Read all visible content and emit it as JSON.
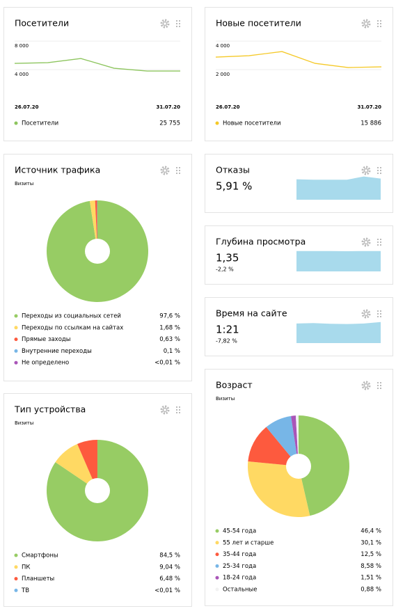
{
  "chart_data": [
    {
      "type": "line",
      "title": "Посетители",
      "categories": [
        "26.07.20",
        null,
        null,
        null,
        null,
        "31.07.20"
      ],
      "series": [
        {
          "name": "Посетители",
          "color": "#8dc55e",
          "values": [
            4878,
            4976,
            5561,
            4195,
            3805,
            3805
          ]
        }
      ],
      "total": "25 755",
      "ylim": [
        0,
        8400
      ],
      "yticks": [
        {
          "value": 4000,
          "label": "4 000"
        },
        {
          "value": 8000,
          "label": "8 000"
        }
      ],
      "grid": true
    },
    {
      "type": "line",
      "title": "Новые посетители",
      "categories": [
        "26.07.20",
        null,
        null,
        null,
        null,
        "31.07.20"
      ],
      "series": [
        {
          "name": "Новые посетители",
          "color": "#f5c928",
          "values": [
            2878,
            2976,
            3268,
            2439,
            2146,
            2195
          ]
        }
      ],
      "total": "15 886",
      "ylim": [
        0,
        4200
      ],
      "yticks": [
        {
          "value": 2000,
          "label": "2 000"
        },
        {
          "value": 4000,
          "label": "4 000"
        }
      ],
      "grid": true
    },
    {
      "type": "pie",
      "title": "Источник трафика",
      "subtitle": "Визиты",
      "categories": [
        "Переходы из социальных сетей",
        "Переходы по ссылкам на сайтах",
        "Прямые заходы",
        "Внутренние переходы",
        "Не определено"
      ],
      "values": [
        97.6,
        1.68,
        0.63,
        0.1,
        0.01
      ],
      "value_labels": [
        "97,6 %",
        "1,68 %",
        "0,63 %",
        "0,1 %",
        "<0,01 %"
      ],
      "colors": [
        "#97cc64",
        "#ffd963",
        "#fd5a3e",
        "#77b6e7",
        "#a955b8"
      ]
    },
    {
      "type": "area",
      "title": "Отказы",
      "value": "5,91 %",
      "values": [
        5.7,
        5.6,
        5.6,
        5.6,
        6.5,
        5.9
      ],
      "ylim": [
        0,
        7
      ],
      "color": "#a8daec"
    },
    {
      "type": "area",
      "title": "Глубина просмотра",
      "value": "1,35",
      "change": "-2,2 %",
      "values": [
        1.3,
        1.3,
        1.3,
        1.29,
        1.3,
        1.3
      ],
      "ylim": [
        0,
        1.6
      ],
      "color": "#a8daec"
    },
    {
      "type": "area",
      "title": "Время на сайте",
      "value": "1:21",
      "change": "-7,82 %",
      "values": [
        78,
        80,
        77,
        76,
        78,
        84
      ],
      "ylim": [
        0,
        100
      ],
      "color": "#a8daec"
    },
    {
      "type": "pie",
      "title": "Тип устройства",
      "subtitle": "Визиты",
      "categories": [
        "Смартфоны",
        "ПК",
        "Планшеты",
        "ТВ"
      ],
      "values": [
        84.5,
        9.04,
        6.48,
        0.01
      ],
      "value_labels": [
        "84,5 %",
        "9,04 %",
        "6,48 %",
        "<0,01 %"
      ],
      "colors": [
        "#97cc64",
        "#ffd963",
        "#fd5a3e",
        "#77b6e7"
      ]
    },
    {
      "type": "pie",
      "title": "Возраст",
      "subtitle": "Визиты",
      "categories": [
        "45-54 года",
        "55 лет и старше",
        "35-44 года",
        "25-34 года",
        "18-24 года",
        "Остальные"
      ],
      "values": [
        46.4,
        30.1,
        12.5,
        8.58,
        1.51,
        0.88
      ],
      "value_labels": [
        "46,4 %",
        "30,1 %",
        "12,5 %",
        "8,58 %",
        "1,51 %",
        "0,88 %"
      ],
      "colors": [
        "#97cc64",
        "#ffd963",
        "#fd5a3e",
        "#77b6e7",
        "#a955b8",
        "#f2f2f2"
      ]
    }
  ]
}
